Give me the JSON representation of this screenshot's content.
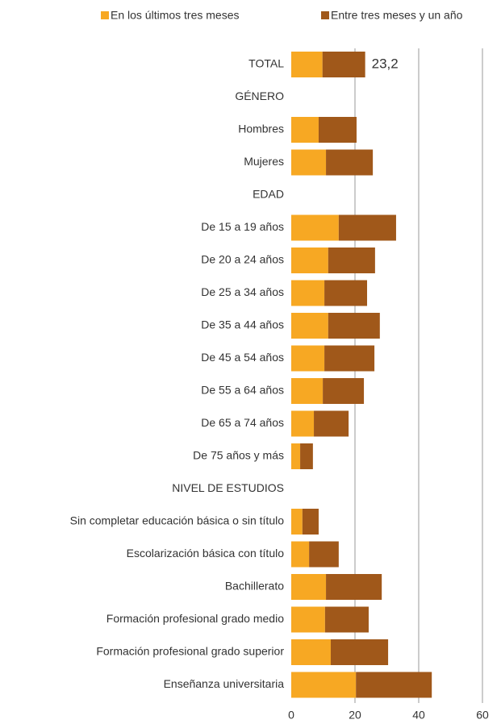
{
  "chart_data": {
    "type": "bar",
    "orientation": "horizontal",
    "stacked": true,
    "categories": [
      "TOTAL",
      "GÉNERO",
      "Hombres",
      "Mujeres",
      "EDAD",
      "De 15 a 19 años",
      "De 20 a 24 años",
      "De 25 a 34 años",
      "De 35 a 44 años",
      "De 45 a 54 años",
      "De 55 a 64 años",
      "De 65 a 74 años",
      "De 75 años y más",
      "NIVEL DE ESTUDIOS",
      "Sin completar educación básica o sin título",
      "Escolarización básica con título",
      "Bachillerato",
      "Formación profesional grado medio",
      "Formación profesional grado superior",
      "Enseñanza universitaria"
    ],
    "series": [
      {
        "name": "En los últimos tres meses",
        "color": "#f7a823",
        "values": [
          9.8,
          null,
          8.6,
          10.9,
          null,
          14.9,
          11.6,
          10.4,
          11.6,
          10.4,
          9.9,
          7.1,
          2.8,
          null,
          3.5,
          5.6,
          10.9,
          10.6,
          12.4,
          20.3
        ]
      },
      {
        "name": "Entre tres meses y un año",
        "color": "#a0581a",
        "values": [
          13.4,
          null,
          11.9,
          14.7,
          null,
          18.0,
          14.7,
          13.4,
          16.2,
          15.7,
          12.9,
          10.9,
          4.0,
          null,
          5.1,
          9.3,
          17.5,
          13.7,
          18.0,
          23.8
        ]
      }
    ],
    "annotations": [
      {
        "category": "TOTAL",
        "text": "23,2"
      }
    ],
    "xlim": [
      0,
      60
    ],
    "xticks": [
      0,
      20,
      40,
      60
    ],
    "grid": true,
    "legend": "top"
  }
}
